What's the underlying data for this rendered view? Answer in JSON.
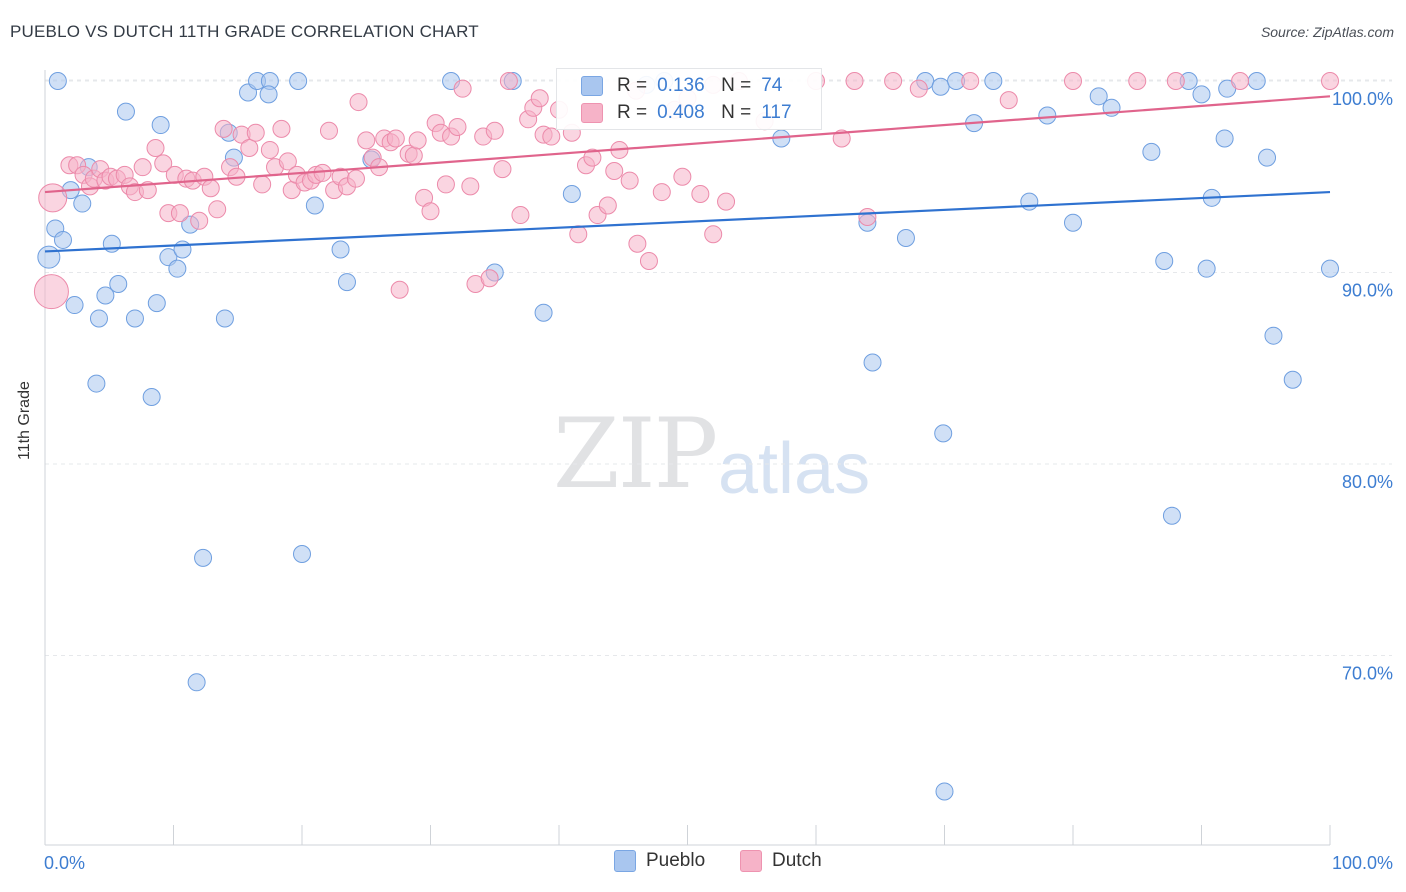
{
  "header": {
    "title": "PUEBLO VS DUTCH 11TH GRADE CORRELATION CHART",
    "source": "Source: ZipAtlas.com"
  },
  "watermark": {
    "zip": "ZIP",
    "atlas": "atlas"
  },
  "legend": {
    "rows": [
      {
        "r_label": "R =",
        "r_value": "0.136",
        "n_label": "N =",
        "n_value": "74",
        "color": "#a9c6ef"
      },
      {
        "r_label": "R =",
        "r_value": "0.408",
        "n_label": "N =",
        "n_value": "117",
        "color": "#f6b3c8"
      }
    ]
  },
  "chart_data": {
    "type": "scatter",
    "title": "PUEBLO VS DUTCH 11TH GRADE CORRELATION CHART",
    "xlabel": "",
    "ylabel": "11th Grade",
    "xlim": [
      0,
      100
    ],
    "ylim": [
      60.5,
      101.5
    ],
    "x_tick_labels": [
      "0.0%",
      "100.0%"
    ],
    "y_ticks": [
      70,
      80,
      90,
      100
    ],
    "y_tick_labels": [
      "70.0%",
      "80.0%",
      "90.0%",
      "100.0%"
    ],
    "grid": true,
    "series": [
      {
        "name": "Pueblo",
        "color": "#a9c6ef",
        "stroke": "#6f9fe0",
        "trend": {
          "x": [
            0,
            100
          ],
          "y": [
            91.1,
            94.2
          ],
          "color": "#2f72d0"
        },
        "points": [
          [
            0.3,
            90.8
          ],
          [
            0.8,
            92.3
          ],
          [
            1.4,
            91.7
          ],
          [
            2.0,
            94.3
          ],
          [
            2.3,
            88.3
          ],
          [
            2.9,
            93.6
          ],
          [
            3.4,
            95.5
          ],
          [
            4.0,
            84.2
          ],
          [
            4.2,
            87.6
          ],
          [
            4.7,
            88.8
          ],
          [
            5.2,
            91.5
          ],
          [
            5.7,
            89.4
          ],
          [
            6.3,
            98.4
          ],
          [
            7.0,
            87.6
          ],
          [
            8.3,
            83.5
          ],
          [
            8.7,
            88.4
          ],
          [
            9.0,
            97.7
          ],
          [
            9.6,
            90.8
          ],
          [
            10.3,
            90.2
          ],
          [
            10.7,
            91.2
          ],
          [
            11.3,
            92.5
          ],
          [
            11.8,
            68.6
          ],
          [
            12.3,
            75.1
          ],
          [
            14.0,
            87.6
          ],
          [
            14.3,
            97.3
          ],
          [
            14.7,
            96.0
          ],
          [
            15.8,
            99.4
          ],
          [
            16.5,
            100.0
          ],
          [
            17.5,
            100.0
          ],
          [
            17.4,
            99.3
          ],
          [
            19.7,
            100.0
          ],
          [
            20.0,
            75.3
          ],
          [
            21.0,
            93.5
          ],
          [
            23.0,
            91.2
          ],
          [
            23.5,
            89.5
          ],
          [
            25.4,
            95.9
          ],
          [
            31.6,
            100.0
          ],
          [
            35.0,
            90.0
          ],
          [
            36.4,
            100.0
          ],
          [
            38.8,
            87.9
          ],
          [
            41.0,
            94.1
          ],
          [
            46.8,
            99.8
          ],
          [
            48.2,
            100.0
          ],
          [
            57.3,
            97.0
          ],
          [
            64.0,
            92.6
          ],
          [
            64.4,
            85.3
          ],
          [
            67.0,
            91.8
          ],
          [
            68.5,
            100.0
          ],
          [
            69.7,
            99.7
          ],
          [
            69.9,
            81.6
          ],
          [
            70.0,
            62.9
          ],
          [
            70.9,
            100.0
          ],
          [
            72.3,
            97.8
          ],
          [
            73.8,
            100.0
          ],
          [
            76.6,
            93.7
          ],
          [
            78.0,
            98.2
          ],
          [
            80.0,
            92.6
          ],
          [
            82.0,
            99.2
          ],
          [
            83.0,
            98.6
          ],
          [
            86.1,
            96.3
          ],
          [
            87.1,
            90.6
          ],
          [
            87.7,
            77.3
          ],
          [
            89.0,
            100.0
          ],
          [
            90.0,
            99.3
          ],
          [
            90.4,
            90.2
          ],
          [
            90.8,
            93.9
          ],
          [
            91.8,
            97.0
          ],
          [
            92.0,
            99.6
          ],
          [
            94.3,
            100.0
          ],
          [
            95.1,
            96.0
          ],
          [
            95.6,
            86.7
          ],
          [
            97.1,
            84.4
          ],
          [
            100.0,
            90.2
          ],
          [
            1.0,
            100.0
          ]
        ]
      },
      {
        "name": "Dutch",
        "color": "#f6b3c8",
        "stroke": "#ec8aaa",
        "trend": {
          "x": [
            0,
            100
          ],
          "y": [
            94.2,
            99.2
          ],
          "color": "#e0648c"
        },
        "points": [
          [
            0.6,
            93.9
          ],
          [
            0.5,
            89.0
          ],
          [
            1.9,
            95.6
          ],
          [
            2.5,
            95.6
          ],
          [
            3.0,
            95.1
          ],
          [
            3.5,
            94.5
          ],
          [
            3.8,
            94.9
          ],
          [
            4.3,
            95.4
          ],
          [
            4.7,
            94.8
          ],
          [
            5.1,
            95.0
          ],
          [
            5.6,
            94.9
          ],
          [
            6.2,
            95.1
          ],
          [
            6.6,
            94.5
          ],
          [
            7.0,
            94.2
          ],
          [
            7.6,
            95.5
          ],
          [
            8.0,
            94.3
          ],
          [
            8.6,
            96.5
          ],
          [
            9.2,
            95.7
          ],
          [
            9.6,
            93.1
          ],
          [
            10.1,
            95.1
          ],
          [
            10.5,
            93.1
          ],
          [
            11.0,
            94.9
          ],
          [
            11.5,
            94.8
          ],
          [
            12.0,
            92.7
          ],
          [
            12.4,
            95.0
          ],
          [
            12.9,
            94.4
          ],
          [
            13.4,
            93.3
          ],
          [
            13.9,
            97.5
          ],
          [
            14.4,
            95.5
          ],
          [
            14.9,
            95.0
          ],
          [
            15.3,
            97.2
          ],
          [
            15.9,
            96.5
          ],
          [
            16.4,
            97.3
          ],
          [
            16.9,
            94.6
          ],
          [
            17.5,
            96.4
          ],
          [
            17.9,
            95.5
          ],
          [
            18.4,
            97.5
          ],
          [
            18.9,
            95.8
          ],
          [
            19.2,
            94.3
          ],
          [
            19.6,
            95.1
          ],
          [
            20.2,
            94.7
          ],
          [
            20.7,
            94.8
          ],
          [
            21.1,
            95.1
          ],
          [
            21.6,
            95.2
          ],
          [
            22.1,
            97.4
          ],
          [
            22.5,
            94.3
          ],
          [
            23.0,
            95.0
          ],
          [
            23.5,
            94.5
          ],
          [
            24.2,
            94.9
          ],
          [
            24.4,
            98.9
          ],
          [
            25.0,
            96.9
          ],
          [
            25.5,
            96.0
          ],
          [
            26.0,
            95.5
          ],
          [
            26.4,
            97.0
          ],
          [
            26.9,
            96.8
          ],
          [
            27.3,
            97.0
          ],
          [
            27.6,
            89.1
          ],
          [
            28.3,
            96.2
          ],
          [
            28.7,
            96.1
          ],
          [
            29.5,
            93.9
          ],
          [
            30.0,
            93.2
          ],
          [
            30.4,
            97.8
          ],
          [
            30.8,
            97.3
          ],
          [
            31.2,
            94.6
          ],
          [
            31.6,
            97.1
          ],
          [
            32.1,
            97.6
          ],
          [
            32.5,
            99.6
          ],
          [
            33.1,
            94.5
          ],
          [
            33.5,
            89.4
          ],
          [
            34.1,
            97.1
          ],
          [
            34.6,
            89.7
          ],
          [
            35.0,
            97.4
          ],
          [
            35.6,
            95.4
          ],
          [
            36.1,
            100.0
          ],
          [
            37.0,
            93.0
          ],
          [
            37.6,
            98.0
          ],
          [
            38.0,
            98.6
          ],
          [
            38.5,
            99.1
          ],
          [
            38.8,
            97.2
          ],
          [
            39.4,
            97.1
          ],
          [
            40.0,
            98.5
          ],
          [
            41.0,
            97.3
          ],
          [
            41.5,
            92.0
          ],
          [
            42.1,
            95.6
          ],
          [
            42.6,
            96.0
          ],
          [
            43.0,
            93.0
          ],
          [
            43.8,
            93.5
          ],
          [
            44.3,
            95.3
          ],
          [
            44.7,
            96.4
          ],
          [
            45.5,
            94.8
          ],
          [
            46.1,
            91.5
          ],
          [
            47.0,
            90.6
          ],
          [
            48.0,
            94.2
          ],
          [
            49.0,
            98.5
          ],
          [
            49.6,
            95.0
          ],
          [
            50.0,
            99.1
          ],
          [
            51.0,
            94.1
          ],
          [
            52.0,
            92.0
          ],
          [
            53.0,
            93.7
          ],
          [
            54.0,
            100.0
          ],
          [
            56.0,
            97.9
          ],
          [
            60.0,
            100.0
          ],
          [
            62.0,
            97.0
          ],
          [
            63.0,
            100.0
          ],
          [
            64.0,
            92.9
          ],
          [
            66.0,
            100.0
          ],
          [
            68.0,
            99.6
          ],
          [
            72.0,
            100.0
          ],
          [
            75.0,
            99.0
          ],
          [
            80.0,
            100.0
          ],
          [
            85.0,
            100.0
          ],
          [
            88.0,
            100.0
          ],
          [
            93.0,
            100.0
          ],
          [
            100.0,
            100.0
          ],
          [
            46.0,
            99.5
          ],
          [
            52.0,
            99.8
          ],
          [
            29.0,
            96.9
          ]
        ]
      }
    ]
  },
  "bottom_legend": [
    {
      "label": "Pueblo",
      "color": "#a9c6ef"
    },
    {
      "label": "Dutch",
      "color": "#f6b3c8"
    }
  ],
  "axis_labels": {
    "x_left": "0.0%",
    "x_right": "100.0%",
    "y": "11th Grade"
  }
}
